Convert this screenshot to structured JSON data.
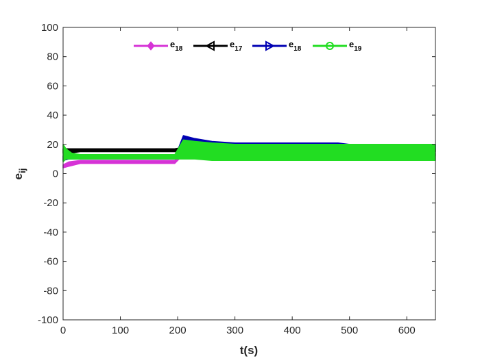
{
  "chart_data": {
    "type": "line",
    "title": "",
    "xlabel": "t(s)",
    "ylabel": "e_ij",
    "ylabel_main": "e",
    "ylabel_sub": "ij",
    "xlim": [
      0,
      650
    ],
    "ylim": [
      -100,
      100
    ],
    "xticks": [
      0,
      100,
      200,
      300,
      400,
      500,
      600
    ],
    "yticks": [
      -100,
      -80,
      -60,
      -40,
      -20,
      0,
      20,
      40,
      60,
      80,
      100
    ],
    "grid": false,
    "legend_position": "top-center",
    "series": [
      {
        "name": "e_18",
        "label_main": "e",
        "label_sub": "18",
        "color": "#d633d6",
        "marker": "diamond",
        "band": [
          [
            0,
            4,
            6
          ],
          [
            10,
            5,
            8
          ],
          [
            30,
            7,
            9
          ],
          [
            100,
            7,
            9
          ],
          [
            195,
            7,
            9
          ],
          [
            205,
            11,
            13
          ],
          [
            230,
            12,
            14
          ],
          [
            300,
            12,
            14
          ],
          [
            400,
            12,
            14
          ],
          [
            450,
            11,
            13
          ],
          [
            480,
            11,
            13
          ],
          [
            500,
            12,
            14
          ],
          [
            650,
            12,
            14
          ]
        ]
      },
      {
        "name": "e_17",
        "label_main": "e",
        "label_sub": "17",
        "color": "#000000",
        "marker": "triangle-left",
        "band": [
          [
            0,
            14,
            17
          ],
          [
            10,
            14,
            17
          ],
          [
            30,
            15,
            17
          ],
          [
            100,
            15,
            17
          ],
          [
            195,
            15,
            17
          ],
          [
            210,
            14,
            18
          ],
          [
            240,
            14,
            17
          ],
          [
            300,
            14,
            18
          ],
          [
            400,
            13,
            17
          ],
          [
            460,
            13,
            16
          ],
          [
            500,
            15,
            17
          ],
          [
            650,
            15,
            17
          ]
        ]
      },
      {
        "name": "e_18",
        "label_main": "e",
        "label_sub": "18",
        "color": "#0000b3",
        "marker": "triangle-right",
        "band": [
          [
            0,
            9,
            12
          ],
          [
            10,
            10,
            12
          ],
          [
            30,
            10,
            11
          ],
          [
            100,
            10,
            11
          ],
          [
            195,
            10,
            11
          ],
          [
            210,
            21,
            26
          ],
          [
            230,
            20,
            24
          ],
          [
            260,
            19,
            22
          ],
          [
            300,
            18,
            21
          ],
          [
            400,
            18,
            21
          ],
          [
            480,
            18,
            21
          ],
          [
            500,
            17,
            20
          ],
          [
            650,
            17,
            20
          ]
        ]
      },
      {
        "name": "e_19",
        "label_main": "e",
        "label_sub": "19",
        "color": "#22dd22",
        "marker": "circle",
        "band": [
          [
            0,
            8,
            20
          ],
          [
            5,
            10,
            17
          ],
          [
            15,
            10,
            14
          ],
          [
            30,
            10,
            13
          ],
          [
            100,
            10,
            13
          ],
          [
            195,
            10,
            13
          ],
          [
            210,
            10,
            23
          ],
          [
            230,
            10,
            22
          ],
          [
            260,
            9,
            21
          ],
          [
            300,
            9,
            20
          ],
          [
            400,
            9,
            20
          ],
          [
            500,
            9,
            20
          ],
          [
            650,
            9,
            20
          ]
        ]
      }
    ]
  }
}
